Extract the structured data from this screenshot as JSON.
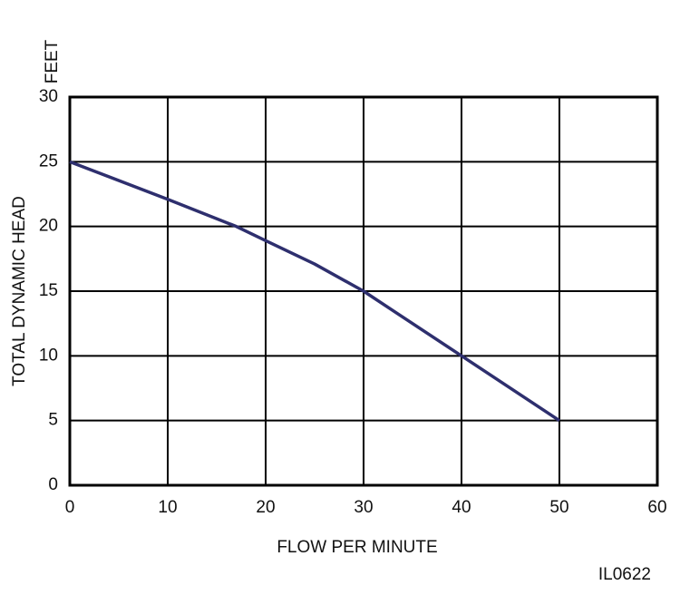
{
  "chart_data": {
    "type": "line",
    "x_label": "FLOW PER MINUTE",
    "y_label": "TOTAL DYNAMIC HEAD",
    "y_unit": "FEET",
    "annotation": "IL0622",
    "x": [
      0,
      10,
      17,
      20,
      25,
      30,
      33,
      40,
      50
    ],
    "values": [
      25,
      22.1,
      20,
      18.9,
      17.1,
      15,
      13.5,
      10,
      5
    ],
    "color": "#2e2f6e",
    "xlim": [
      0,
      60
    ],
    "xticks": [
      0,
      10,
      20,
      30,
      40,
      50,
      60
    ],
    "ylim": [
      0,
      30
    ],
    "yticks": [
      0,
      5,
      10,
      15,
      20,
      25,
      30
    ],
    "grid": true
  }
}
